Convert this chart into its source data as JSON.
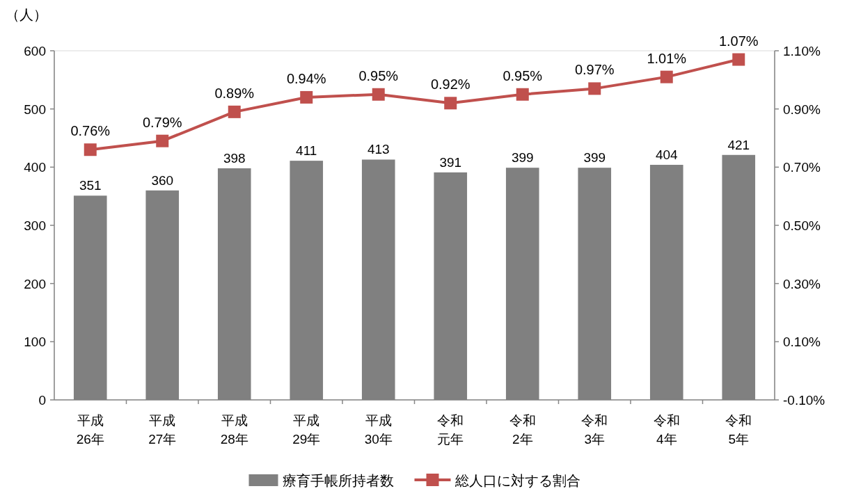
{
  "chart_data": {
    "type": "bar",
    "ylabel": "（人）",
    "categories": [
      "平成26年",
      "平成27年",
      "平成28年",
      "平成29年",
      "平成30年",
      "令和元年",
      "令和2年",
      "令和3年",
      "令和4年",
      "令和5年"
    ],
    "series": [
      {
        "name": "療育手帳所持者数",
        "color": "#808080",
        "values": [
          351,
          360,
          398,
          411,
          413,
          391,
          399,
          399,
          404,
          421
        ]
      },
      {
        "name": "総人口に対する割合",
        "type": "line",
        "axis": "y2",
        "color": "#c0504d",
        "marker": "square",
        "values": [
          0.76,
          0.79,
          0.89,
          0.94,
          0.95,
          0.92,
          0.95,
          0.97,
          1.01,
          1.07
        ],
        "value_labels": [
          "0.76%",
          "0.79%",
          "0.89%",
          "0.94%",
          "0.95%",
          "0.92%",
          "0.95%",
          "0.97%",
          "1.01%",
          "1.07%"
        ]
      }
    ],
    "ylim": [
      0,
      600
    ],
    "yticks": [
      0,
      100,
      200,
      300,
      400,
      500,
      600
    ],
    "y2lim": [
      -0.1,
      1.1
    ],
    "y2ticks": [
      {
        "value": -0.1,
        "label": "-0.10%"
      },
      {
        "value": 0.1,
        "label": "0.10%"
      },
      {
        "value": 0.3,
        "label": "0.30%"
      },
      {
        "value": 0.5,
        "label": "0.50%"
      },
      {
        "value": 0.7,
        "label": "0.70%"
      },
      {
        "value": 0.9,
        "label": "0.90%"
      },
      {
        "value": 1.1,
        "label": "1.10%"
      }
    ],
    "data_labels": true,
    "legend": "bottom"
  }
}
